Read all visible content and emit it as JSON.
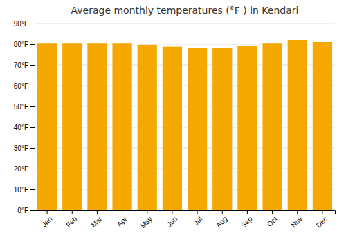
{
  "chart_data": {
    "type": "bar",
    "title": "Average monthly temperatures (°F ) in Kendari",
    "categories": [
      "Jan",
      "Feb",
      "Mar",
      "Apr",
      "May",
      "Jun",
      "Jul",
      "Aug",
      "Sep",
      "Oct",
      "Nov",
      "Dec"
    ],
    "values": [
      80.6,
      80.6,
      80.6,
      80.6,
      79.7,
      78.8,
      78.1,
      78.3,
      79.3,
      80.6,
      82.0,
      81.0
    ],
    "color": "#F5A800",
    "ylim": [
      0,
      90
    ],
    "yticks": [
      {
        "value": 0,
        "label": "0°F"
      },
      {
        "value": 10,
        "label": "10°F"
      },
      {
        "value": 20,
        "label": "20°F"
      },
      {
        "value": 30,
        "label": "30°F"
      },
      {
        "value": 40,
        "label": "40°F"
      },
      {
        "value": 50,
        "label": "50°F"
      },
      {
        "value": 60,
        "label": "60°F"
      },
      {
        "value": 70,
        "label": "70°F"
      },
      {
        "value": 80,
        "label": "80°F"
      },
      {
        "value": 90,
        "label": "90°F"
      }
    ],
    "grid": true
  }
}
